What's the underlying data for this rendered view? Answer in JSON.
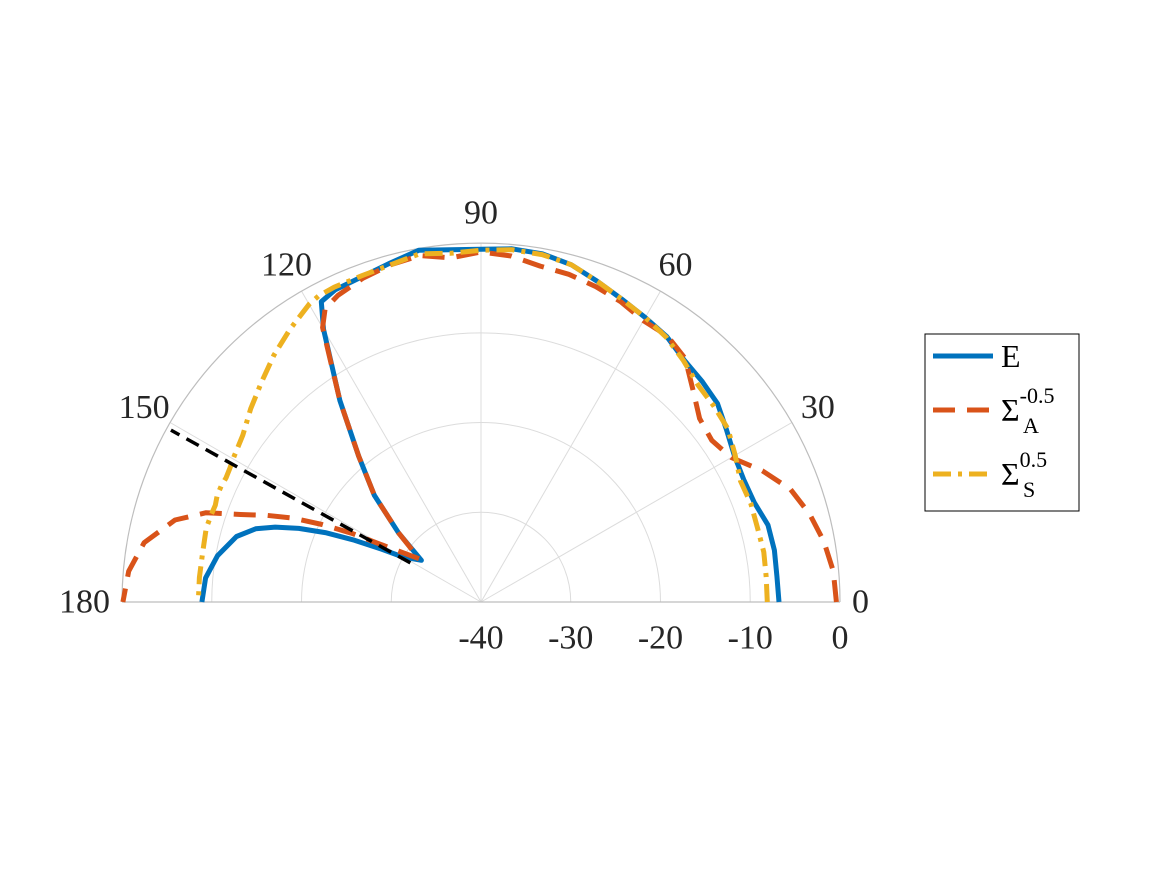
{
  "chart_data": {
    "type": "polar-line",
    "title": "",
    "angular_range_deg": [
      0,
      180
    ],
    "angular_ticks": [
      "0",
      "30",
      "60",
      "90",
      "120",
      "150",
      "180"
    ],
    "radial_range": [
      -40,
      0
    ],
    "radial_ticks": [
      "-40",
      "-30",
      "-20",
      "-10",
      "0"
    ],
    "grid": true,
    "legend_placement": "right",
    "legend": [
      {
        "key": "E",
        "base": "E",
        "sub": "",
        "sup": ""
      },
      {
        "key": "SA",
        "base": "Σ",
        "sub": "A",
        "sup": "-0.5"
      },
      {
        "key": "SS",
        "base": "Σ",
        "sub": "S",
        "sup": "0.5"
      }
    ],
    "colors": {
      "E": "#0072BD",
      "SA": "#D95319",
      "SS": "#EDB120",
      "guide": "#000000"
    },
    "series": [
      {
        "key": "E",
        "style": "solid",
        "theta": [
          0,
          5,
          10,
          15,
          20,
          25,
          30,
          35,
          40,
          45,
          50,
          55,
          60,
          65,
          70,
          75,
          80,
          85,
          90,
          95,
          100,
          105,
          110,
          115,
          118,
          120,
          125,
          130,
          135,
          140,
          145,
          150,
          152,
          154,
          156,
          158,
          160,
          162,
          165,
          170,
          175,
          180
        ],
        "r": [
          -6.8,
          -6.9,
          -6.8,
          -6.9,
          -7.6,
          -7.7,
          -7.4,
          -6.6,
          -5.6,
          -5.2,
          -4.8,
          -3.9,
          -3.4,
          -2.8,
          -2.0,
          -1.1,
          -0.6,
          -0.5,
          -0.7,
          -0.6,
          -0.2,
          -0.9,
          -1.4,
          -1.6,
          -2.1,
          -4.9,
          -12.6,
          -18.8,
          -23.2,
          -28.0,
          -31.9,
          -30.0,
          -27.5,
          -24.3,
          -21.0,
          -18.1,
          -15.6,
          -13.6,
          -11.8,
          -10.2,
          -9.2,
          -8.9
        ]
      },
      {
        "key": "SA",
        "style": "dashed",
        "theta": [
          0,
          5,
          10,
          15,
          20,
          25,
          30,
          35,
          40,
          45,
          50,
          55,
          60,
          65,
          70,
          75,
          80,
          85,
          90,
          95,
          100,
          105,
          110,
          115,
          118,
          120,
          125,
          130,
          135,
          140,
          145,
          150,
          152,
          154,
          156,
          158,
          160,
          162,
          165,
          170,
          175,
          180
        ],
        "r": [
          -0.4,
          -0.6,
          -1.2,
          -2.1,
          -3.3,
          -5.4,
          -7.8,
          -8.6,
          -8.2,
          -6.6,
          -4.6,
          -3.8,
          -3.8,
          -3.1,
          -2.6,
          -2.2,
          -2.0,
          -1.3,
          -1.0,
          -1.5,
          -0.8,
          -1.1,
          -1.6,
          -2.3,
          -3.0,
          -4.7,
          -12.6,
          -18.8,
          -23.2,
          -28.0,
          -31.6,
          -27.3,
          -23.7,
          -20.3,
          -17.0,
          -14.2,
          -11.5,
          -7.8,
          -4.7,
          -1.9,
          -0.6,
          -0.1
        ]
      },
      {
        "key": "SS",
        "style": "dashdot",
        "theta": [
          0,
          5,
          10,
          15,
          20,
          25,
          30,
          35,
          40,
          45,
          50,
          55,
          60,
          65,
          70,
          75,
          80,
          85,
          90,
          95,
          100,
          105,
          110,
          115,
          118,
          120,
          125,
          130,
          135,
          140,
          145,
          150,
          152,
          154,
          156,
          158,
          160,
          162,
          165,
          170,
          175,
          180
        ],
        "r": [
          -8.1,
          -8.1,
          -8.0,
          -8.1,
          -8.0,
          -8.1,
          -7.3,
          -6.4,
          -6.1,
          -5.8,
          -4.9,
          -4.0,
          -3.4,
          -2.8,
          -2.0,
          -1.1,
          -0.7,
          -0.6,
          -0.8,
          -1.0,
          -0.6,
          -1.1,
          -1.3,
          -1.3,
          -1.4,
          -1.7,
          -2.9,
          -4.1,
          -5.4,
          -6.5,
          -7.6,
          -8.1,
          -8.3,
          -8.4,
          -8.3,
          -8.3,
          -8.5,
          -8.4,
          -8.3,
          -8.5,
          -8.5,
          -8.5
        ]
      }
    ],
    "guide_line": {
      "style": "dashed",
      "theta": [
        151,
        151
      ],
      "r": [
        -31.0,
        -0.5
      ]
    }
  }
}
